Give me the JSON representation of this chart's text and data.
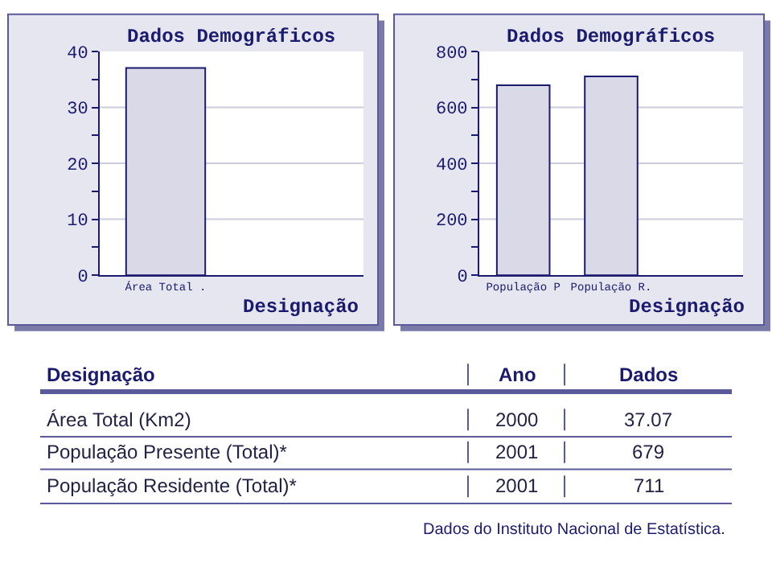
{
  "chart_data": [
    {
      "type": "bar",
      "title": "Dados Demográficos",
      "xlabel": "Designação",
      "categories": [
        "Área Total .",
        null
      ],
      "values": [
        37.07,
        null
      ],
      "color": "#d9d9e8",
      "ylim": [
        0,
        40
      ],
      "yticks": [
        0,
        {
          "value": 5,
          "label": null
        },
        10,
        {
          "value": 15,
          "label": null
        },
        20,
        {
          "value": 25,
          "label": null
        },
        30,
        {
          "value": 35,
          "label": null
        },
        40
      ],
      "grid": "y"
    },
    {
      "type": "bar",
      "title": "Dados Demográficos",
      "xlabel": "Designação",
      "categories": [
        "População P",
        "População R.",
        null
      ],
      "values": [
        679,
        711,
        null
      ],
      "color": "#d9d9e8",
      "ylim": [
        0,
        800
      ],
      "yticks": [
        0,
        {
          "value": 100,
          "label": null
        },
        200,
        {
          "value": 300,
          "label": null
        },
        400,
        {
          "value": 500,
          "label": null
        },
        600,
        {
          "value": 700,
          "label": null
        },
        800
      ],
      "grid": "y"
    },
    {
      "type": "other",
      "annotations": [
        "Designação",
        "Ano",
        "Dados",
        "Área Total (Km2)",
        "2000",
        "37.07",
        "População Presente (Total)*",
        "2001",
        "679",
        "População Residente (Total)*",
        "2001",
        "711",
        "Dados do Instituto Nacional de Estatística."
      ]
    }
  ]
}
